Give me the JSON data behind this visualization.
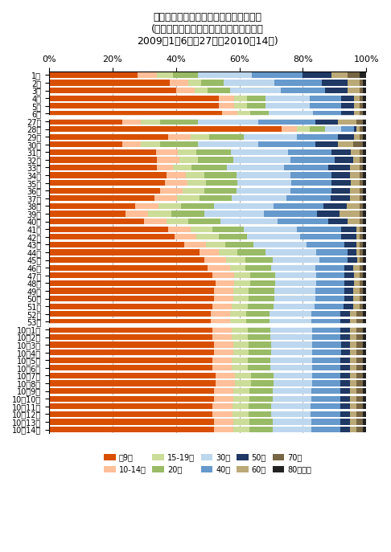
{
  "title": "東京都におけるインフルエンザの報告数\n(年齢階層別、該当週合計に占める割合、\n2009年1〜6週と27週〜2010年14週)",
  "colors": {
    "u9": "#D94F00",
    "10_14": "#FFBF99",
    "15_19": "#CCDD99",
    "20s": "#99BB66",
    "30s": "#BDD7EE",
    "40s": "#6699CC",
    "50s": "#1F3864",
    "60s": "#BBAA77",
    "70s": "#776644",
    "80plus": "#222222"
  },
  "legend_labels": [
    "〜9歳",
    "10-14歳",
    "15-19歳",
    "20代",
    "30代",
    "40代",
    "50代",
    "60代",
    "70代",
    "80歳以上"
  ],
  "weeks": [
    "1週",
    "2週",
    "3週",
    "4週",
    "5週",
    "6週",
    "27週",
    "28週",
    "29週",
    "30週",
    "31週",
    "32週",
    "33週",
    "34週",
    "35週",
    "36週",
    "37週",
    "38週",
    "39週",
    "40週",
    "41週",
    "42週",
    "43週",
    "44週",
    "45週",
    "46週",
    "47週",
    "48週",
    "49週",
    "50週",
    "51週",
    "52週",
    "53週",
    "10年1週",
    "10年2週",
    "10年3週",
    "10年4週",
    "10年5週",
    "10年6週",
    "10年7週",
    "10年8週",
    "10年9週",
    "10年10週",
    "10年11週",
    "10年12週",
    "10年13週",
    "10年14週"
  ],
  "data": {
    "u9": [
      0.28,
      0.38,
      0.4,
      0.54,
      0.54,
      0.55,
      0.23,
      0.74,
      0.38,
      0.23,
      0.34,
      0.34,
      0.34,
      0.37,
      0.37,
      0.35,
      0.33,
      0.26,
      0.23,
      0.3,
      0.38,
      0.4,
      0.43,
      0.48,
      0.5,
      0.5,
      0.52,
      0.53,
      0.52,
      0.52,
      0.51,
      0.5,
      0.5,
      0.51,
      0.51,
      0.52,
      0.52,
      0.51,
      0.51,
      0.52,
      0.52,
      0.51,
      0.51,
      0.5,
      0.5,
      0.51,
      0.51
    ],
    "10_14": [
      0.06,
      0.06,
      0.06,
      0.05,
      0.05,
      0.05,
      0.06,
      0.05,
      0.07,
      0.06,
      0.07,
      0.07,
      0.05,
      0.06,
      0.07,
      0.07,
      0.07,
      0.07,
      0.07,
      0.07,
      0.07,
      0.07,
      0.07,
      0.06,
      0.07,
      0.07,
      0.07,
      0.06,
      0.06,
      0.06,
      0.06,
      0.06,
      0.06,
      0.06,
      0.06,
      0.06,
      0.06,
      0.06,
      0.06,
      0.06,
      0.06,
      0.06,
      0.06,
      0.06,
      0.06,
      0.06,
      0.06
    ],
    "15_19": [
      0.05,
      0.04,
      0.04,
      0.04,
      0.04,
      0.04,
      0.06,
      0.04,
      0.06,
      0.06,
      0.06,
      0.06,
      0.06,
      0.06,
      0.06,
      0.07,
      0.07,
      0.07,
      0.07,
      0.07,
      0.07,
      0.07,
      0.06,
      0.06,
      0.06,
      0.05,
      0.05,
      0.05,
      0.05,
      0.05,
      0.05,
      0.05,
      0.05,
      0.05,
      0.05,
      0.05,
      0.05,
      0.05,
      0.05,
      0.05,
      0.05,
      0.05,
      0.05,
      0.05,
      0.05,
      0.05,
      0.05
    ],
    "20s": [
      0.08,
      0.07,
      0.07,
      0.06,
      0.06,
      0.06,
      0.12,
      0.05,
      0.11,
      0.12,
      0.11,
      0.11,
      0.11,
      0.1,
      0.1,
      0.1,
      0.1,
      0.1,
      0.1,
      0.1,
      0.1,
      0.09,
      0.09,
      0.09,
      0.09,
      0.08,
      0.08,
      0.08,
      0.08,
      0.08,
      0.08,
      0.07,
      0.07,
      0.07,
      0.07,
      0.07,
      0.07,
      0.07,
      0.07,
      0.07,
      0.07,
      0.07,
      0.07,
      0.07,
      0.07,
      0.07,
      0.07
    ],
    "30s": [
      0.17,
      0.16,
      0.16,
      0.14,
      0.14,
      0.14,
      0.19,
      0.05,
      0.17,
      0.19,
      0.18,
      0.18,
      0.18,
      0.17,
      0.17,
      0.17,
      0.17,
      0.18,
      0.18,
      0.18,
      0.17,
      0.17,
      0.17,
      0.16,
      0.15,
      0.14,
      0.13,
      0.13,
      0.13,
      0.13,
      0.13,
      0.13,
      0.13,
      0.13,
      0.13,
      0.13,
      0.13,
      0.13,
      0.13,
      0.12,
      0.12,
      0.12,
      0.12,
      0.12,
      0.12,
      0.12,
      0.12
    ],
    "40s": [
      0.16,
      0.15,
      0.14,
      0.1,
      0.1,
      0.09,
      0.18,
      0.04,
      0.13,
      0.18,
      0.14,
      0.14,
      0.14,
      0.13,
      0.13,
      0.13,
      0.14,
      0.15,
      0.16,
      0.16,
      0.14,
      0.13,
      0.12,
      0.1,
      0.09,
      0.09,
      0.09,
      0.09,
      0.09,
      0.09,
      0.09,
      0.09,
      0.09,
      0.09,
      0.09,
      0.09,
      0.09,
      0.09,
      0.09,
      0.09,
      0.09,
      0.09,
      0.09,
      0.09,
      0.09,
      0.09,
      0.09
    ],
    "50s": [
      0.09,
      0.08,
      0.07,
      0.04,
      0.04,
      0.04,
      0.07,
      0.01,
      0.05,
      0.07,
      0.06,
      0.06,
      0.07,
      0.06,
      0.06,
      0.06,
      0.06,
      0.07,
      0.07,
      0.06,
      0.05,
      0.05,
      0.04,
      0.03,
      0.03,
      0.03,
      0.03,
      0.03,
      0.03,
      0.03,
      0.03,
      0.03,
      0.03,
      0.03,
      0.03,
      0.03,
      0.03,
      0.03,
      0.03,
      0.03,
      0.03,
      0.03,
      0.03,
      0.03,
      0.03,
      0.03,
      0.03
    ],
    "60s": [
      0.05,
      0.04,
      0.04,
      0.02,
      0.02,
      0.02,
      0.06,
      0.01,
      0.02,
      0.05,
      0.03,
      0.02,
      0.03,
      0.03,
      0.03,
      0.03,
      0.03,
      0.04,
      0.06,
      0.04,
      0.01,
      0.01,
      0.01,
      0.01,
      0.01,
      0.02,
      0.02,
      0.02,
      0.02,
      0.02,
      0.02,
      0.02,
      0.02,
      0.02,
      0.02,
      0.02,
      0.02,
      0.02,
      0.02,
      0.02,
      0.02,
      0.02,
      0.02,
      0.02,
      0.02,
      0.02,
      0.02
    ],
    "70s": [
      0.04,
      0.01,
      0.01,
      0.01,
      0.01,
      0.01,
      0.02,
      0.01,
      0.01,
      0.03,
      0.01,
      0.01,
      0.01,
      0.01,
      0.01,
      0.01,
      0.01,
      0.01,
      0.01,
      0.01,
      0.01,
      0.01,
      0.01,
      0.01,
      0.01,
      0.01,
      0.01,
      0.01,
      0.01,
      0.01,
      0.01,
      0.02,
      0.02,
      0.02,
      0.02,
      0.02,
      0.02,
      0.02,
      0.02,
      0.02,
      0.02,
      0.02,
      0.02,
      0.02,
      0.02,
      0.02,
      0.02
    ],
    "80plus": [
      0.02,
      0.01,
      0.01,
      0.01,
      0.01,
      0.01,
      0.01,
      0.01,
      0.01,
      0.01,
      0.01,
      0.01,
      0.01,
      0.01,
      0.01,
      0.01,
      0.01,
      0.01,
      0.01,
      0.01,
      0.01,
      0.01,
      0.01,
      0.01,
      0.01,
      0.01,
      0.01,
      0.01,
      0.01,
      0.01,
      0.01,
      0.01,
      0.01,
      0.01,
      0.01,
      0.01,
      0.01,
      0.01,
      0.01,
      0.01,
      0.01,
      0.01,
      0.01,
      0.01,
      0.01,
      0.01,
      0.01
    ]
  }
}
